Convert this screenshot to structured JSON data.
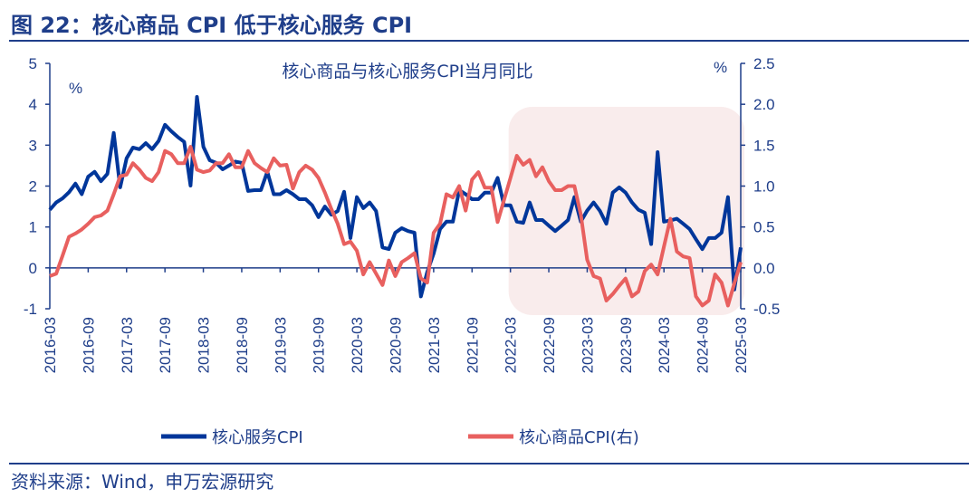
{
  "figure_title": "图 22：核心商品 CPI 低于核心服务 CPI",
  "source": "资料来源：Wind，申万宏源研究",
  "colors": {
    "services": "#00369a",
    "goods": "#e8605f",
    "highlight": "#f9ecec",
    "axis": "#1f3e8a"
  },
  "chart_data": {
    "type": "line",
    "title": "核心商品与核心服务CPI当月同比",
    "ylabel_left": "%",
    "ylabel_right": "%",
    "ylim_left": [
      -1,
      5
    ],
    "yticks_left": [
      "5",
      "4",
      "3",
      "2",
      "1",
      "0",
      "-1"
    ],
    "ylim_right": [
      -0.5,
      2.5
    ],
    "yticks_right": [
      "2.5",
      "2.0",
      "1.5",
      "1.0",
      "0.5",
      "0.0",
      "-0.5"
    ],
    "x_start": "2016-03",
    "x_end": "2025-03",
    "xtick_labels": [
      "2016-03",
      "2016-09",
      "2017-03",
      "2017-09",
      "2018-03",
      "2018-09",
      "2019-03",
      "2019-09",
      "2020-03",
      "2020-09",
      "2021-03",
      "2021-09",
      "2022-03",
      "2022-09",
      "2023-03",
      "2023-09",
      "2024-03",
      "2024-09",
      "2025-03"
    ],
    "highlight_range": [
      "2022-03",
      "2025-03"
    ],
    "series": [
      {
        "name": "核心服务CPI",
        "axis": "left",
        "values": [
          1.42,
          1.6,
          1.7,
          1.85,
          2.06,
          1.8,
          2.23,
          2.35,
          2.12,
          2.3,
          3.3,
          1.97,
          2.68,
          2.94,
          2.9,
          3.05,
          2.9,
          3.1,
          3.5,
          3.34,
          3.2,
          3.08,
          2.01,
          4.18,
          2.96,
          2.63,
          2.57,
          2.41,
          2.5,
          2.6,
          2.57,
          1.88,
          1.9,
          1.9,
          2.35,
          1.8,
          1.8,
          1.9,
          1.8,
          1.68,
          1.68,
          1.53,
          1.24,
          1.5,
          1.3,
          1.39,
          1.86,
          0.73,
          1.73,
          1.46,
          1.6,
          1.39,
          0.5,
          0.46,
          0.86,
          0.97,
          0.9,
          0.86,
          -0.7,
          -0.1,
          0.35,
          0.95,
          1.13,
          1.13,
          1.9,
          1.8,
          1.68,
          1.68,
          1.84,
          1.84,
          2.2,
          1.53,
          1.53,
          1.13,
          1.1,
          1.6,
          1.17,
          1.17,
          1.03,
          0.9,
          1.03,
          1.17,
          1.73,
          1.13,
          1.4,
          1.6,
          1.39,
          1.08,
          1.84,
          1.97,
          1.84,
          1.6,
          1.42,
          1.35,
          0.58,
          2.83,
          1.13,
          1.16,
          1.2,
          1.08,
          0.95,
          0.7,
          0.46,
          0.73,
          0.73,
          0.86,
          1.73,
          -0.53,
          0.5
        ]
      },
      {
        "name": "核心商品CPI(右)",
        "axis": "right",
        "values": [
          -0.1,
          -0.07,
          0.15,
          0.38,
          0.42,
          0.47,
          0.54,
          0.62,
          0.64,
          0.7,
          0.9,
          1.12,
          1.14,
          1.28,
          1.2,
          1.1,
          1.06,
          1.17,
          1.43,
          1.39,
          1.28,
          1.28,
          1.48,
          1.2,
          1.17,
          1.19,
          1.28,
          1.28,
          1.39,
          1.23,
          1.23,
          1.43,
          1.28,
          1.22,
          1.17,
          1.34,
          1.25,
          1.26,
          0.97,
          1.17,
          1.25,
          1.2,
          1.1,
          0.92,
          0.72,
          0.54,
          0.29,
          0.32,
          0.21,
          -0.08,
          0.07,
          -0.07,
          -0.21,
          0.09,
          -0.1,
          0.07,
          0.12,
          0.18,
          -0.13,
          -0.18,
          0.43,
          0.54,
          0.9,
          0.86,
          1.0,
          0.7,
          1.08,
          1.17,
          0.98,
          0.98,
          0.56,
          0.83,
          1.1,
          1.37,
          1.26,
          1.32,
          1.12,
          1.23,
          1.06,
          0.95,
          0.95,
          1.0,
          1.0,
          0.65,
          0.1,
          -0.1,
          -0.13,
          -0.4,
          -0.32,
          -0.22,
          -0.13,
          -0.35,
          -0.29,
          -0.04,
          0.04,
          -0.08,
          0.26,
          0.6,
          0.2,
          0.14,
          0.12,
          -0.35,
          -0.46,
          -0.4,
          -0.08,
          -0.18,
          -0.46,
          -0.19,
          0.07
        ]
      }
    ],
    "legend": [
      "核心服务CPI",
      "核心商品CPI(右)"
    ],
    "legend_position": "bottom",
    "grid": false
  }
}
